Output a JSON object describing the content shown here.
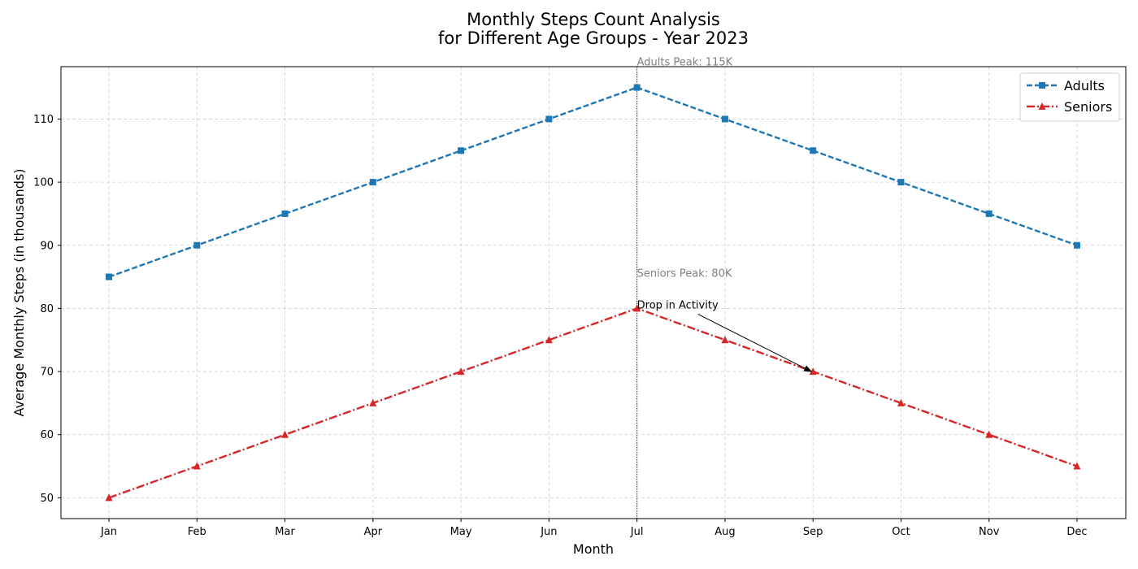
{
  "chart_data": {
    "type": "line",
    "title": "Monthly Steps Count Analysis\nfor Different Age Groups - Year 2023",
    "title_lines": [
      "Monthly Steps Count Analysis",
      "for Different Age Groups - Year 2023"
    ],
    "xlabel": "Month",
    "ylabel": "Average Monthly Steps (in thousands)",
    "categories": [
      "Jan",
      "Feb",
      "Mar",
      "Apr",
      "May",
      "Jun",
      "Jul",
      "Aug",
      "Sep",
      "Oct",
      "Nov",
      "Dec"
    ],
    "ylim": [
      46.7,
      118.3
    ],
    "yticks": [
      50,
      60,
      70,
      80,
      90,
      100,
      110
    ],
    "grid": true,
    "legend_position": "top-right",
    "series": [
      {
        "name": "Adults",
        "values": [
          85,
          90,
          95,
          100,
          105,
          110,
          115,
          110,
          105,
          100,
          95,
          90
        ],
        "color": "#1f77b4",
        "line_style": "dashed",
        "marker": "square"
      },
      {
        "name": "Seniors",
        "values": [
          50,
          55,
          60,
          65,
          70,
          75,
          80,
          75,
          70,
          65,
          60,
          55
        ],
        "color": "#d62728",
        "line_style": "dash-dot",
        "marker": "triangle"
      }
    ],
    "reference_line": {
      "x": "Jul",
      "color": "#555555",
      "style": "dotted"
    },
    "annotations": [
      {
        "text": "Adults Peak: 115K",
        "x": "Jul",
        "y": 118.5,
        "color": "#808080"
      },
      {
        "text": "Seniors Peak: 80K",
        "x": "Jul",
        "y": 85,
        "color": "#808080"
      },
      {
        "text": "Drop in Activity",
        "x": "Jul",
        "y": 80,
        "arrow_to": {
          "x": "Sep",
          "y": 70
        },
        "color": "#000000"
      }
    ]
  }
}
